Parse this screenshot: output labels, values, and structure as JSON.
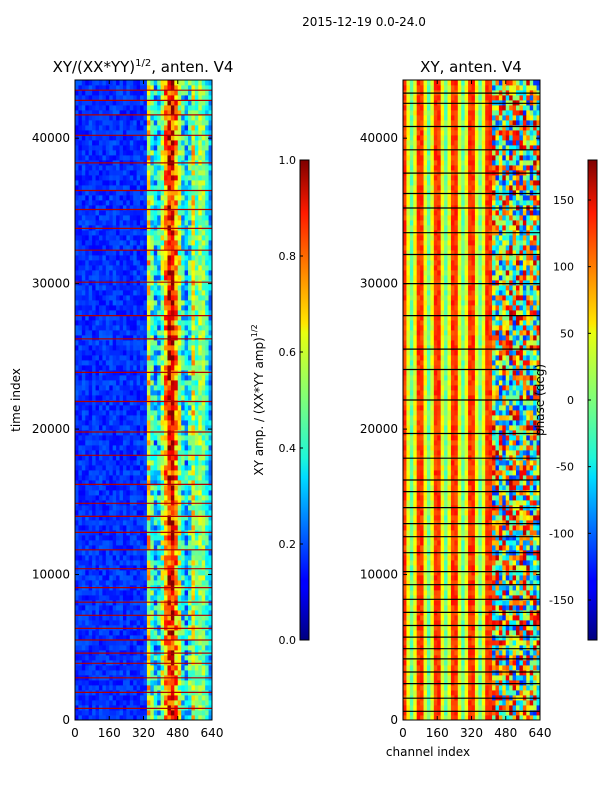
{
  "figure": {
    "suptitle": "2015-12-19 0.0-24.0"
  },
  "chart_data": [
    {
      "type": "heatmap",
      "title": "XY/(XX*YY)",
      "title_exponent": "1/2",
      "title_suffix": ", anten. V4",
      "xlabel": "",
      "ylabel": "time index",
      "xlim": [
        0,
        640
      ],
      "ylim": [
        0,
        44000
      ],
      "xticks": [
        0,
        160,
        320,
        480,
        640
      ],
      "yticks": [
        0,
        10000,
        20000,
        30000,
        40000
      ],
      "colormap": "jet",
      "colorbar": {
        "label": "XY amp. / (XX*YY amp)",
        "label_exponent": "1/2",
        "range": [
          0.0,
          1.0
        ],
        "ticks": [
          "0.0",
          "0.2",
          "0.4",
          "0.6",
          "0.8",
          "1.0"
        ]
      },
      "description_values": {
        "background_level": 0.12,
        "bright_band_channels": [
          340,
          640
        ],
        "bright_band_level": 0.55,
        "flagged_rows": [
          800,
          1900,
          2900,
          3900,
          4600,
          5500,
          6300,
          7200,
          8100,
          9100,
          10400,
          11700,
          12900,
          14000,
          14900,
          16200,
          18200,
          19800,
          21900,
          23900,
          26200,
          27800,
          30100,
          32300,
          33800,
          35100,
          36400,
          38300,
          40200,
          41600,
          42600,
          43300
        ]
      }
    },
    {
      "type": "heatmap",
      "title": "XY, anten. V4",
      "xlabel": "channel index",
      "ylabel": "",
      "xlim": [
        0,
        640
      ],
      "ylim": [
        0,
        44000
      ],
      "xticks": [
        0,
        160,
        320,
        480,
        640
      ],
      "yticks": [
        0,
        10000,
        20000,
        30000,
        40000
      ],
      "colormap": "jet",
      "colorbar": {
        "label": "phase (deg)",
        "range": [
          -180,
          180
        ],
        "ticks": [
          "-150",
          "-100",
          "-50",
          "0",
          "50",
          "100",
          "150"
        ]
      },
      "description_values": {
        "stripe_period_channels": 80,
        "stripe_phase_range_deg": [
          -20,
          140
        ],
        "noisy_region_channels": [
          420,
          640
        ],
        "flagged_rows": [
          600,
          1500,
          2500,
          3300,
          4200,
          4900,
          5700,
          6500,
          7400,
          8300,
          9300,
          10200,
          11500,
          12600,
          13500,
          14600,
          15700,
          16500,
          18000,
          19700,
          22000,
          24100,
          25500,
          27800,
          30000,
          32000,
          33500,
          35200,
          36200,
          37600,
          39200,
          40800,
          42400,
          43100
        ]
      }
    }
  ]
}
